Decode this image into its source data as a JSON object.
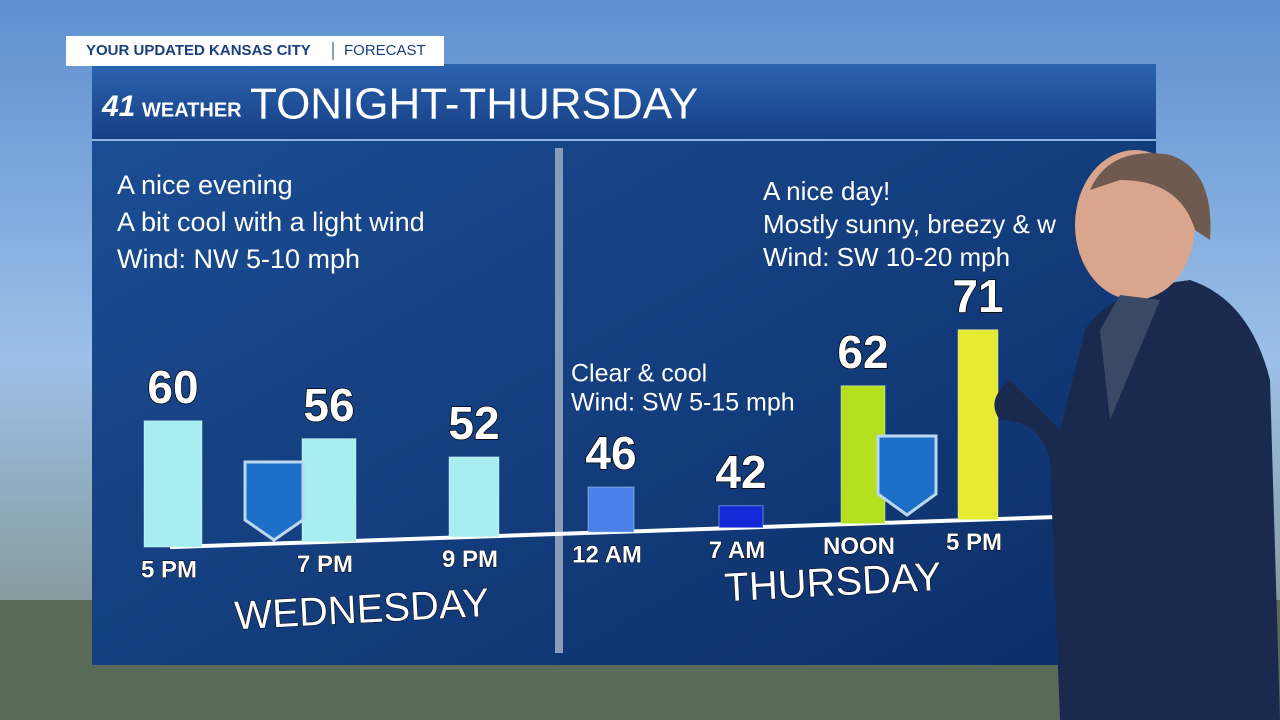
{
  "header": {
    "station": "YOUR UPDATED KANSAS CITY",
    "section": "FORECAST"
  },
  "logo": {
    "number": "41",
    "brand": "WEATHER"
  },
  "chart_data": {
    "type": "bar",
    "title": "TONIGHT-THURSDAY",
    "categories": [
      "5 PM",
      "7 PM",
      "9 PM",
      "12 AM",
      "7 AM",
      "NOON",
      "5 PM"
    ],
    "values": [
      60,
      56,
      52,
      46,
      42,
      62,
      71
    ],
    "colors": [
      "#a8eef0",
      "#a8eef0",
      "#a8eef0",
      "#4a80e8",
      "#1428d8",
      "#b4e020",
      "#e6ea30"
    ],
    "groups": [
      {
        "label": "WEDNESDAY",
        "notes": [
          "A nice evening",
          "A bit cool with a light wind",
          "Wind: NW 5-10 mph"
        ]
      },
      {
        "label": "THURSDAY",
        "notes": [
          "A nice day!",
          "Mostly sunny, breezy & w",
          "Wind: SW 10-20 mph"
        ]
      }
    ],
    "annotation": [
      "Clear & cool",
      "Wind: SW 5-15 mph"
    ]
  }
}
